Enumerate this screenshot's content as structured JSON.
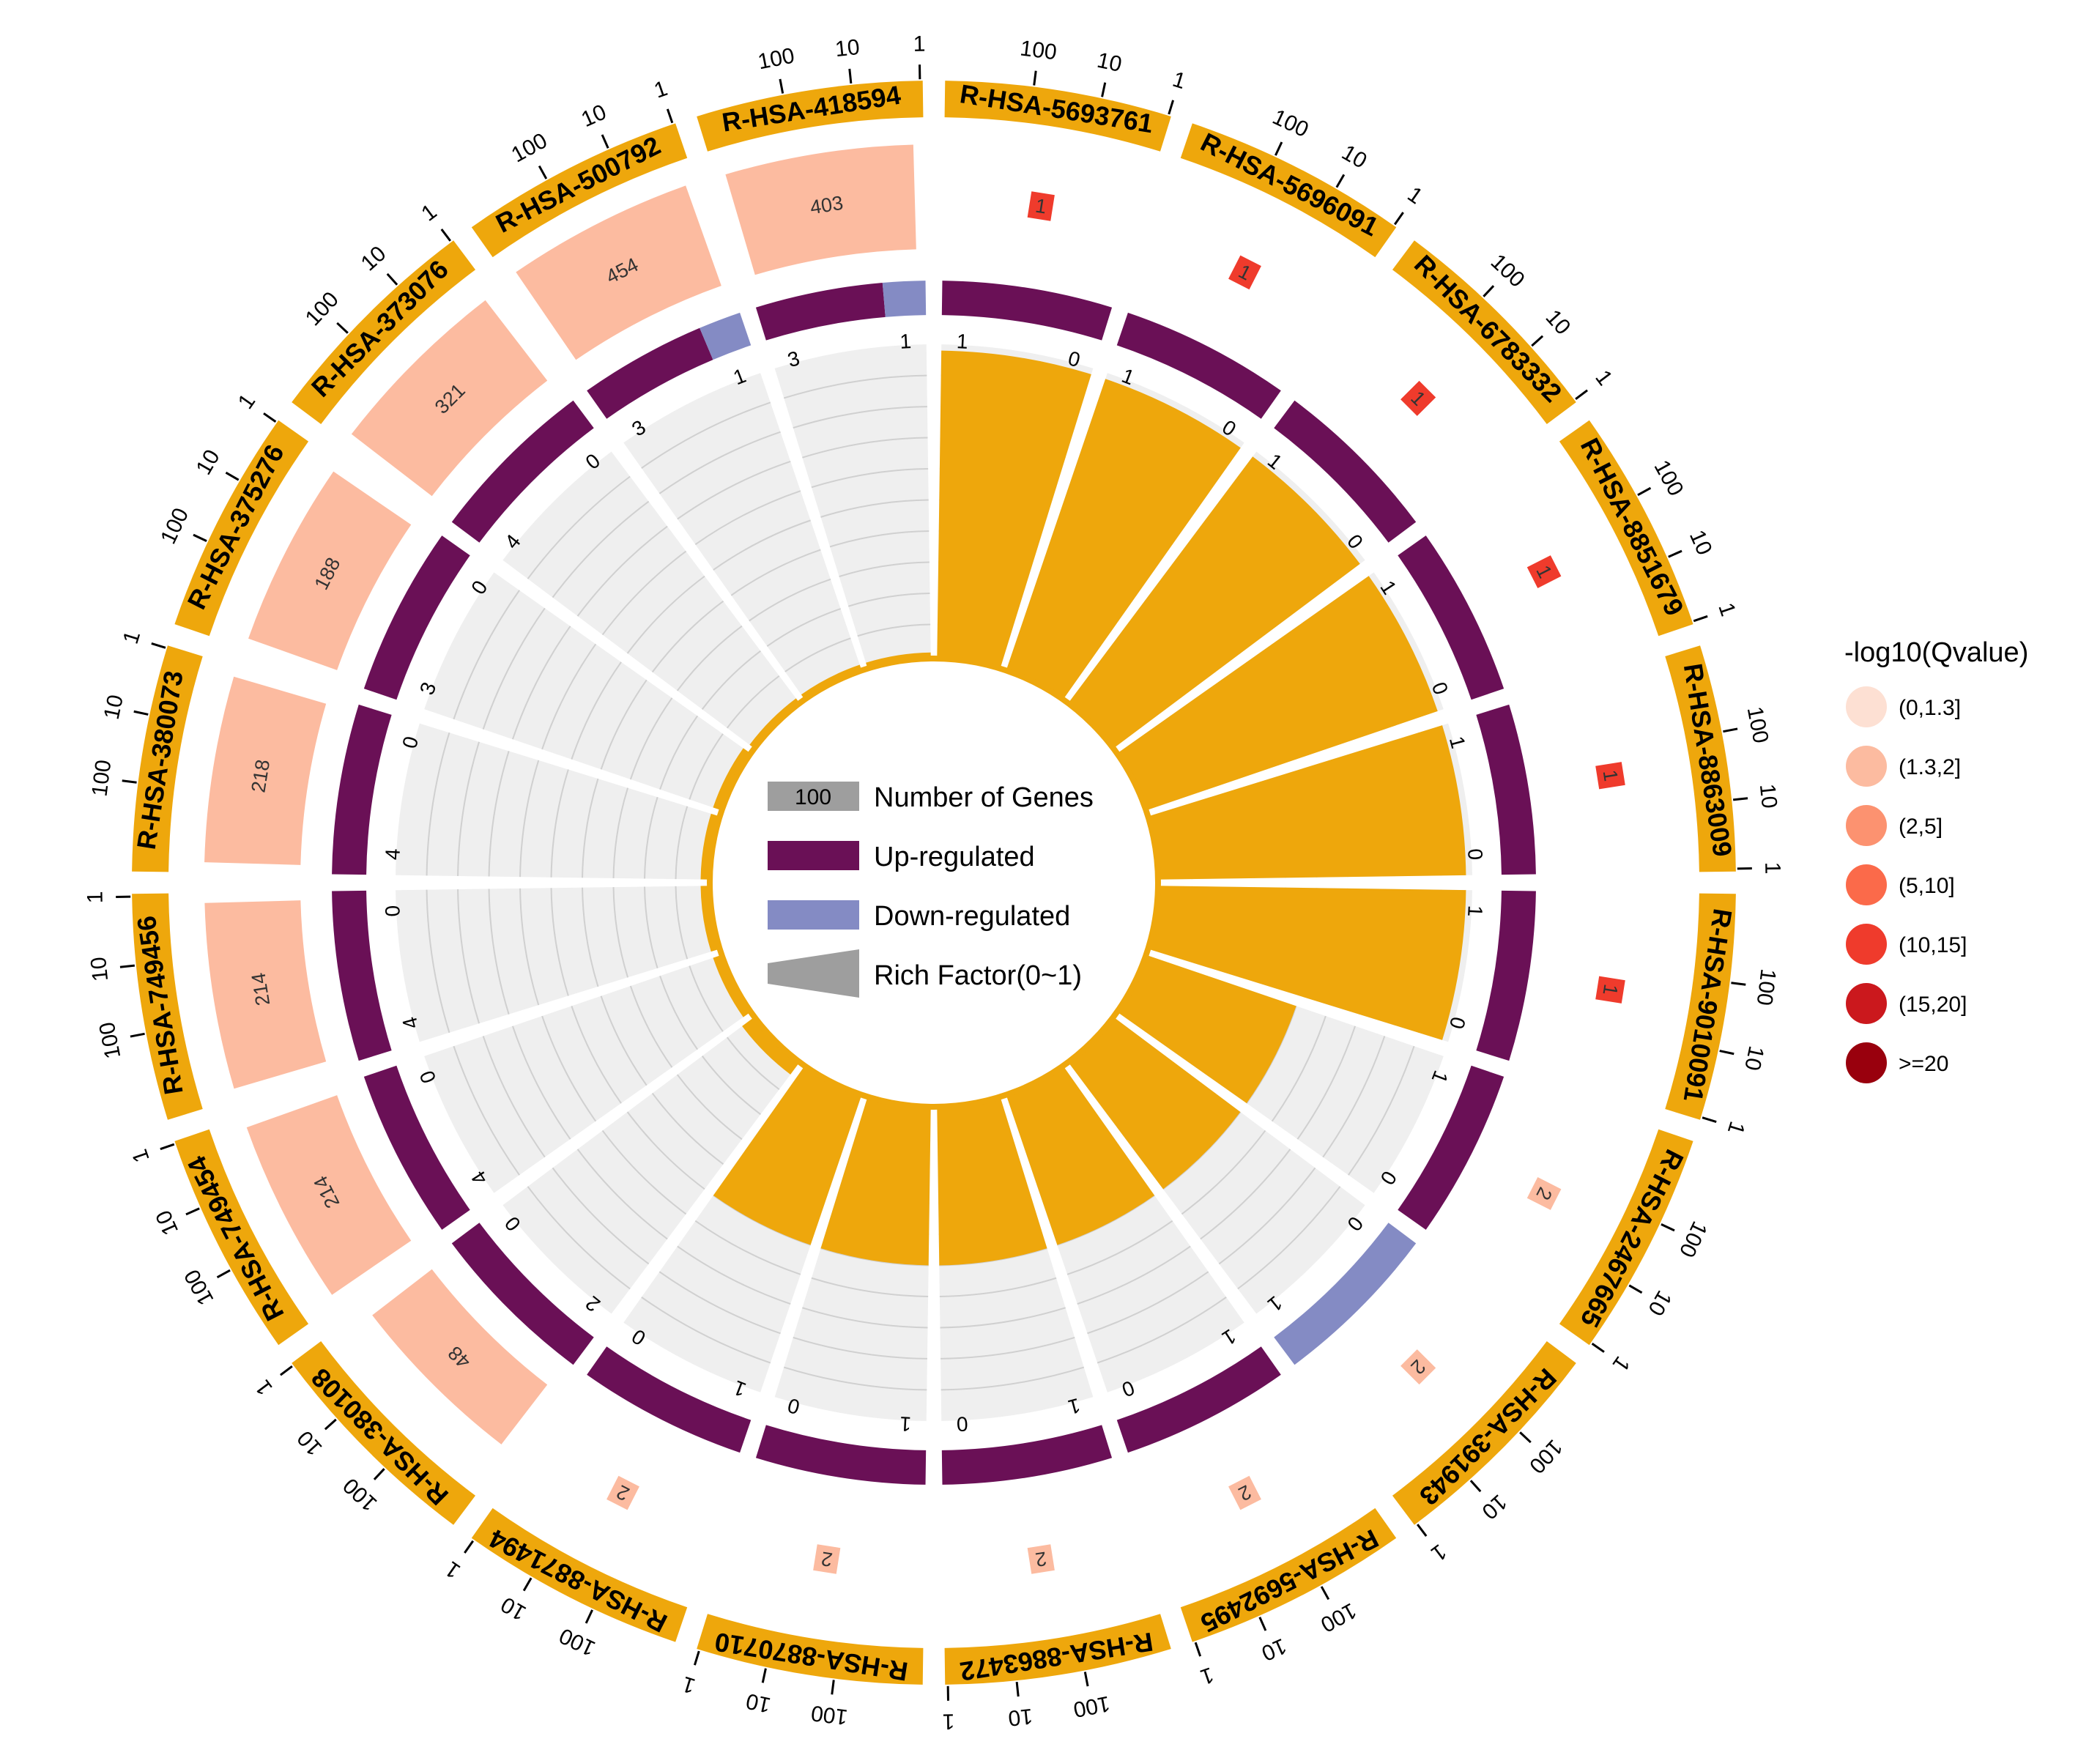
{
  "chart_data": {
    "type": "circos",
    "terms": [
      {
        "id": "R-HSA-5693761",
        "total": 1,
        "count": 1,
        "up": 1,
        "down": 0,
        "rich": 0.98,
        "qclass": 5
      },
      {
        "id": "R-HSA-5696091",
        "total": 1,
        "count": 1,
        "up": 1,
        "down": 0,
        "rich": 0.98,
        "qclass": 5
      },
      {
        "id": "R-HSA-6783332",
        "total": 1,
        "count": 1,
        "up": 1,
        "down": 0,
        "rich": 0.98,
        "qclass": 5
      },
      {
        "id": "R-HSA-8851679",
        "total": 1,
        "count": 1,
        "up": 1,
        "down": 0,
        "rich": 0.98,
        "qclass": 5
      },
      {
        "id": "R-HSA-8863009",
        "total": 1,
        "count": 1,
        "up": 1,
        "down": 0,
        "rich": 0.98,
        "qclass": 5
      },
      {
        "id": "R-HSA-9010091",
        "total": 1,
        "count": 1,
        "up": 1,
        "down": 0,
        "rich": 0.98,
        "qclass": 5
      },
      {
        "id": "R-HSA-2467665",
        "total": 2,
        "count": 1,
        "up": 1,
        "down": 0,
        "rich": 0.5,
        "qclass": 2
      },
      {
        "id": "R-HSA-391943",
        "total": 2,
        "count": 1,
        "up": 0,
        "down": 1,
        "rich": 0.5,
        "qclass": 2
      },
      {
        "id": "R-HSA-5692495",
        "total": 2,
        "count": 1,
        "up": 1,
        "down": 0,
        "rich": 0.5,
        "qclass": 2
      },
      {
        "id": "R-HSA-8863472",
        "total": 2,
        "count": 1,
        "up": 1,
        "down": 0,
        "rich": 0.5,
        "qclass": 2
      },
      {
        "id": "R-HSA-8870710",
        "total": 2,
        "count": 1,
        "up": 1,
        "down": 0,
        "rich": 0.5,
        "qclass": 2
      },
      {
        "id": "R-HSA-8871494",
        "total": 2,
        "count": 1,
        "up": 1,
        "down": 0,
        "rich": 0.5,
        "qclass": 2
      },
      {
        "id": "R-HSA-380108",
        "total": 48,
        "count": 2,
        "up": 2,
        "down": 0,
        "rich": 0.04,
        "qclass": 2
      },
      {
        "id": "R-HSA-749454",
        "total": 214,
        "count": 4,
        "up": 4,
        "down": 0,
        "rich": 0.02,
        "qclass": 2
      },
      {
        "id": "R-HSA-749456",
        "total": 214,
        "count": 4,
        "up": 4,
        "down": 0,
        "rich": 0.02,
        "qclass": 2
      },
      {
        "id": "R-HSA-380073",
        "total": 218,
        "count": 4,
        "up": 4,
        "down": 0,
        "rich": 0.02,
        "qclass": 2
      },
      {
        "id": "R-HSA-375276",
        "total": 188,
        "count": 3,
        "up": 3,
        "down": 0,
        "rich": 0.02,
        "qclass": 2
      },
      {
        "id": "R-HSA-373076",
        "total": 321,
        "count": 4,
        "up": 4,
        "down": 0,
        "rich": 0.01,
        "qclass": 2
      },
      {
        "id": "R-HSA-500792",
        "total": 454,
        "count": 4,
        "up": 3,
        "down": 1,
        "rich": 0.01,
        "qclass": 2
      },
      {
        "id": "R-HSA-418594",
        "total": 403,
        "count": 4,
        "up": 3,
        "down": 1,
        "rich": 0.01,
        "qclass": 2
      }
    ],
    "outer_ticks": [
      "1",
      "10",
      "100"
    ],
    "colors": {
      "term_ring": "#eea70c",
      "up": "#6a1056",
      "down": "#848bc4",
      "rich_bar": "#eea70c",
      "rich_bg": "#efefef",
      "gene_legend": "#9e9e9e"
    },
    "legend": {
      "genes_label": "Number of Genes",
      "genes_sample": "100",
      "up_label": "Up-regulated",
      "down_label": "Down-regulated",
      "rich_label": "Rich Factor(0~1)"
    },
    "q_legend": {
      "title": "-log10(Qvalue)",
      "items": [
        {
          "label": "(0,1.3]",
          "color": "#fde0d3"
        },
        {
          "label": "(1.3,2]",
          "color": "#fcbba0"
        },
        {
          "label": "(2,5]",
          "color": "#fc9270"
        },
        {
          "label": "(5,10]",
          "color": "#fb6a4a"
        },
        {
          "label": "(10,15]",
          "color": "#ef3b2c"
        },
        {
          "label": "(15,20]",
          "color": "#cb181d"
        },
        {
          "label": ">=20",
          "color": "#99000d"
        }
      ]
    }
  }
}
